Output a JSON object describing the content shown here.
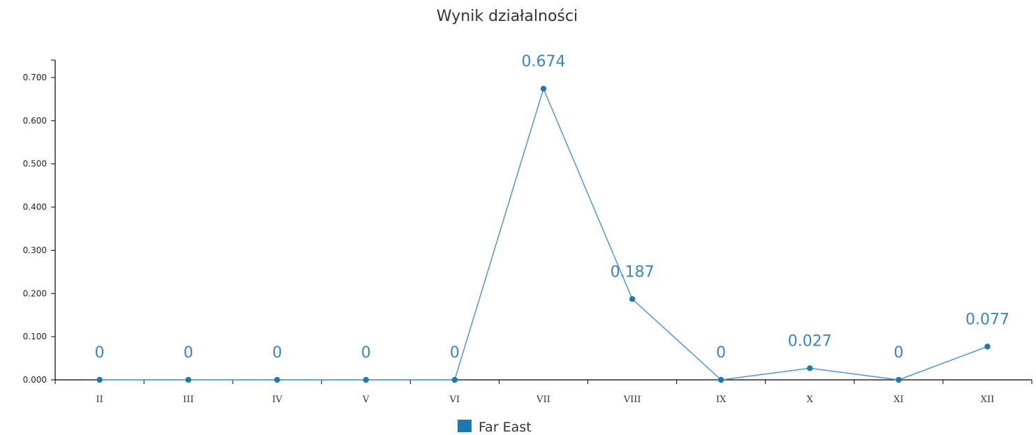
{
  "chart_data": {
    "type": "line",
    "title": "Wynik działalności",
    "categories": [
      "II",
      "III",
      "IV",
      "V",
      "VI",
      "VII",
      "VIII",
      "IX",
      "X",
      "XI",
      "XII"
    ],
    "yticks": [
      "0.000",
      "0.100",
      "0.200",
      "0.300",
      "0.400",
      "0.500",
      "0.600",
      "0.700"
    ],
    "ylim": [
      0,
      0.7
    ],
    "series": [
      {
        "name": "Far East",
        "values": [
          0,
          0,
          0,
          0,
          0,
          0.674,
          0.187,
          0,
          0.027,
          0,
          0.077
        ],
        "labels": [
          "0",
          "0",
          "0",
          "0",
          "0",
          "0.674",
          "0.187",
          "0",
          "0.027",
          "0",
          "0.077"
        ],
        "color": "#1f77b4",
        "line_color": "#5b9bd0"
      }
    ],
    "legend_position": "bottom-center",
    "grid": false
  }
}
